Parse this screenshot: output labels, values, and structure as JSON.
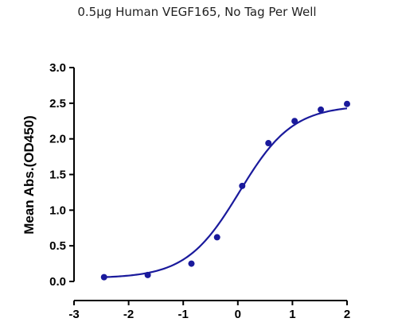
{
  "chart_data": {
    "type": "scatter",
    "title": "",
    "subtitle": "0.5μg Human VEGF165, No Tag Per Well",
    "xlabel": "",
    "ylabel": "Mean Abs.(OD450)",
    "xlim": [
      -3,
      2
    ],
    "ylim": [
      0,
      3.0
    ],
    "x_ticks": [
      "-3",
      "-2",
      "-1",
      "0",
      "1",
      "2"
    ],
    "y_ticks": [
      "0.0",
      "0.5",
      "1.0",
      "1.5",
      "2.0",
      "2.5",
      "3.0"
    ],
    "grid": false,
    "legend": "none",
    "series": [
      {
        "x": [
          -2.45,
          -1.65,
          -0.85,
          -0.38,
          0.08,
          0.56,
          1.04,
          1.52,
          2.0
        ],
        "y": [
          0.06,
          0.09,
          0.25,
          0.62,
          1.34,
          1.94,
          2.25,
          2.41,
          2.49
        ],
        "color": "#1a1a9c",
        "fit_curve": true
      }
    ]
  }
}
